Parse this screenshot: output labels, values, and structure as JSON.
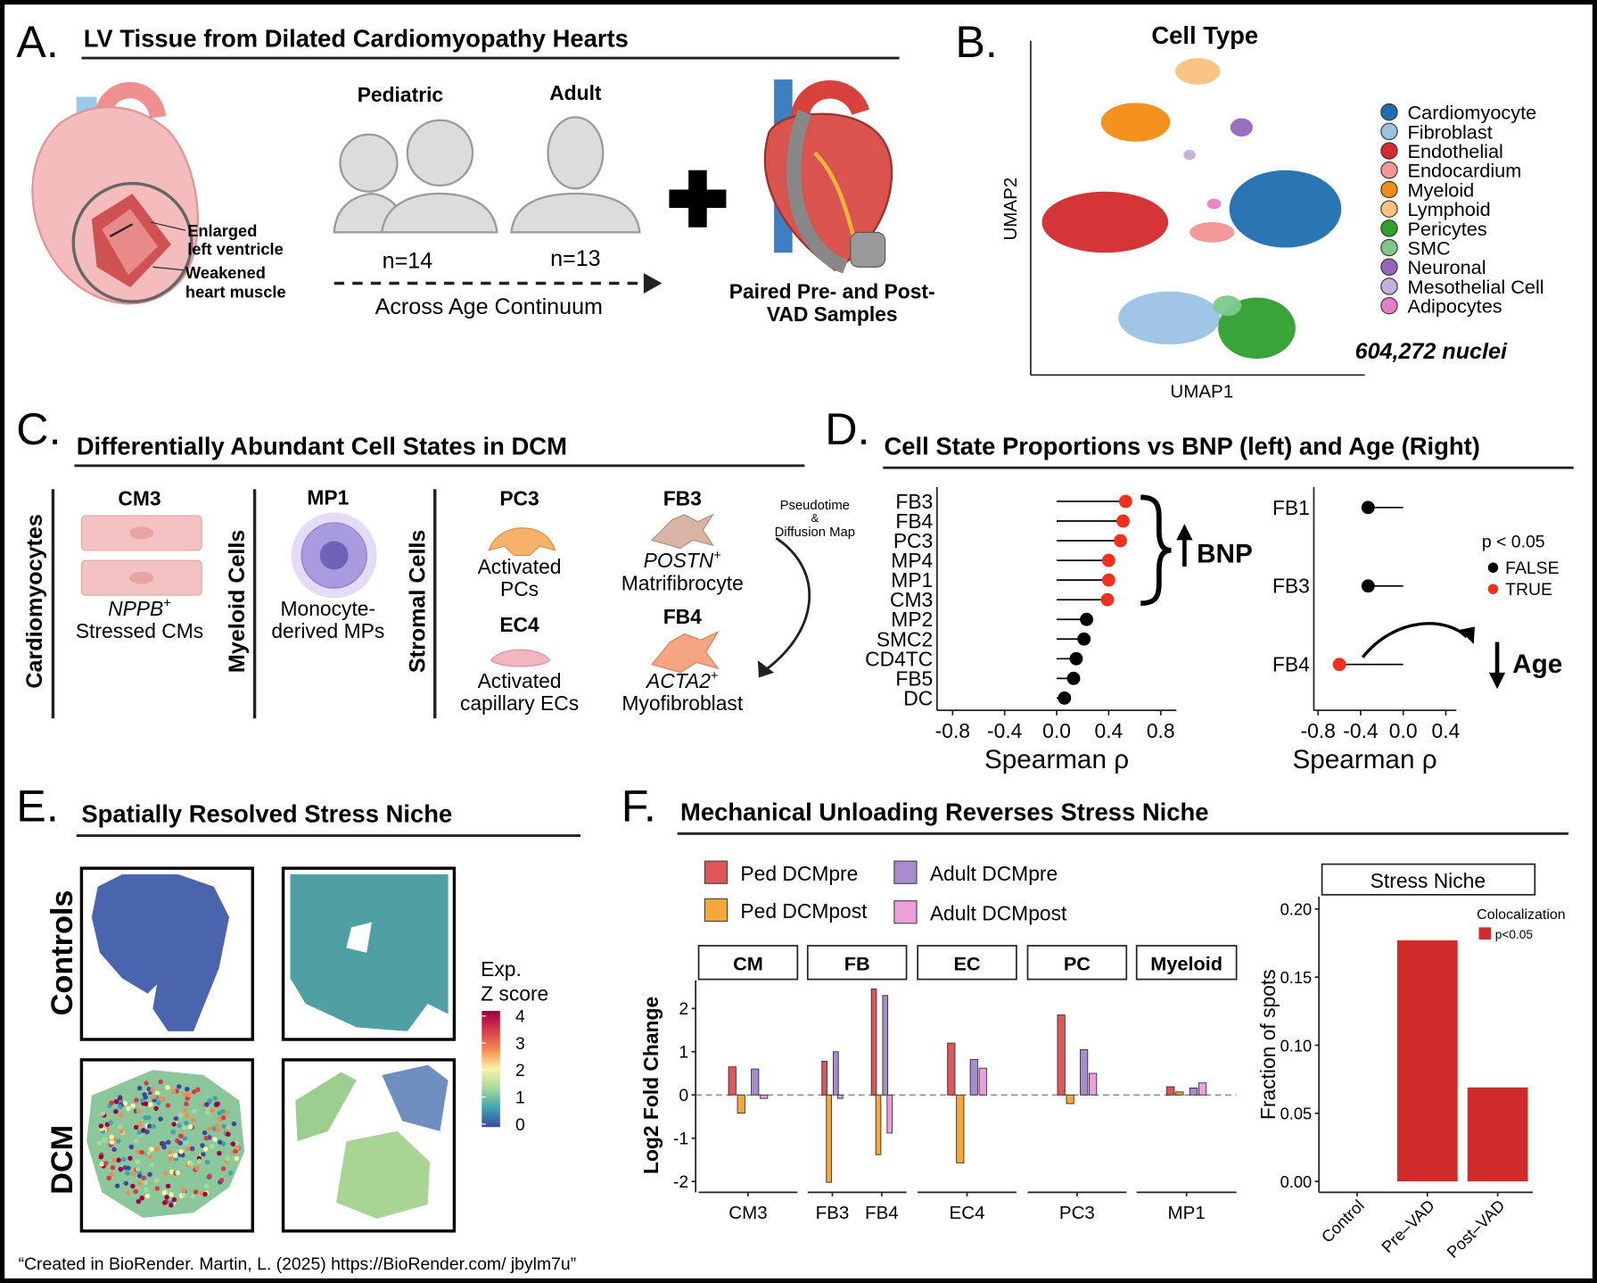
{
  "panel_a": {
    "label": "A.",
    "title": "LV Tissue from Dilated Cardiomyopathy Hearts",
    "heart_labels": [
      [
        "Enlarged",
        "left ventricle"
      ],
      [
        "Weakened",
        "heart muscle"
      ]
    ],
    "groups": [
      {
        "name": "Pediatric",
        "n": "n=14"
      },
      {
        "name": "Adult",
        "n": "n=13"
      }
    ],
    "arrow_label": "Across Age Continuum",
    "vad_label": [
      "Paired Pre- and Post-",
      "VAD Samples"
    ]
  },
  "panel_b": {
    "label": "B.",
    "title": "Cell Type",
    "xlabel": "UMAP1",
    "ylabel": "UMAP2",
    "legend": [
      {
        "name": "Cardiomyocyte",
        "color": "#1f6fae"
      },
      {
        "name": "Fibroblast",
        "color": "#9cc3e4"
      },
      {
        "name": "Endothelial",
        "color": "#d42a2c"
      },
      {
        "name": "Endocardium",
        "color": "#f29593"
      },
      {
        "name": "Myeloid",
        "color": "#f28c12"
      },
      {
        "name": "Lymphoid",
        "color": "#f9c27e"
      },
      {
        "name": "Pericytes",
        "color": "#2ea02e"
      },
      {
        "name": "SMC",
        "color": "#7cc98b"
      },
      {
        "name": "Neuronal",
        "color": "#9467bd"
      },
      {
        "name": "Mesothelial Cell",
        "color": "#c5b0d8"
      },
      {
        "name": "Adipocytes",
        "color": "#e57fc3"
      }
    ],
    "annotation": "604,272 nuclei"
  },
  "panel_c": {
    "label": "C.",
    "title": "Differentially Abundant Cell States in DCM",
    "groups": [
      "Cardiomyocytes",
      "Myeloid Cells",
      "Stromal Cells"
    ],
    "states": [
      {
        "name": "CM3",
        "gene": "NPPB",
        "sup": "+",
        "desc": [
          "Stressed CMs"
        ]
      },
      {
        "name": "MP1",
        "desc": [
          "Monocyte-",
          "derived MPs"
        ]
      },
      {
        "name": "PC3",
        "desc": [
          "Activated",
          "PCs"
        ]
      },
      {
        "name": "EC4",
        "desc": [
          "Activated",
          "capillary ECs"
        ]
      },
      {
        "name": "FB3",
        "gene": "POSTN",
        "sup": "+",
        "desc": [
          "Matrifibrocyte"
        ]
      },
      {
        "name": "FB4",
        "gene": "ACTA2",
        "sup": "+",
        "desc": [
          "Myofibroblast"
        ]
      }
    ],
    "arrow_label": [
      "Pseudotime",
      "&",
      "Diffusion Map"
    ]
  },
  "panel_d": {
    "label": "D.",
    "title": "Cell State Proportions vs BNP (left) and Age (Right)"
  },
  "panel_e": {
    "label": "E.",
    "title": "Spatially Resolved Stress Niche",
    "rows": [
      "Controls",
      "DCM"
    ],
    "colorbar": {
      "title": [
        "Exp.",
        "Z score"
      ],
      "lim": [
        -0.11,
        4.19
      ],
      "ticks": [
        0,
        1,
        2,
        3,
        4
      ],
      "colors": [
        "#3b4aa0",
        "#3fa3b0",
        "#a6da9c",
        "#fbf3a6",
        "#f68a4e",
        "#d63a4a",
        "#9e0142"
      ]
    }
  },
  "panel_f": {
    "label": "F.",
    "title": "Mechanical Unloading Reverses Stress Niche"
  },
  "chart_data": [
    {
      "type": "lollipop",
      "categories": [
        "FB3",
        "FB4",
        "PC3",
        "MP4",
        "MP1",
        "CM3",
        "MP2",
        "SMC2",
        "CD4TC",
        "FB5",
        "DC"
      ],
      "values": [
        0.53,
        0.51,
        0.49,
        0.4,
        0.4,
        0.39,
        0.23,
        0.21,
        0.15,
        0.13,
        0.06
      ],
      "significant": [
        true,
        true,
        true,
        true,
        true,
        true,
        false,
        false,
        false,
        false,
        false
      ],
      "xlim": [
        -0.92,
        0.92
      ],
      "xticks": [
        -0.8,
        -0.4,
        {
          "value": 0,
          "label": "0.0"
        },
        0.4,
        0.8
      ],
      "xlabel": "Spearman ρ",
      "annotation": "BNP"
    },
    {
      "type": "lollipop",
      "categories": [
        "FB1",
        "FB3",
        "FB4"
      ],
      "values": [
        -0.33,
        -0.33,
        -0.6
      ],
      "significant": [
        false,
        false,
        true
      ],
      "xlim": [
        -0.84,
        0.5
      ],
      "xticks": [
        -0.8,
        -0.4,
        {
          "value": 0,
          "label": "0.0"
        },
        0.4
      ],
      "xlabel": "Spearman ρ",
      "annotation": "Age",
      "legend": {
        "title": "p < 0.05",
        "entries": [
          {
            "name": "FALSE",
            "color": "#000000"
          },
          {
            "name": "TRUE",
            "color": "#f2301b"
          }
        ]
      }
    },
    {
      "type": "bar",
      "ylabel": "Log2 Fold Change",
      "facets": [
        {
          "label": "CM",
          "categories": [
            "CM3"
          ]
        },
        {
          "label": "FB",
          "categories": [
            "FB3",
            "FB4"
          ]
        },
        {
          "label": "EC",
          "categories": [
            "EC4"
          ]
        },
        {
          "label": "PC",
          "categories": [
            "PC3"
          ]
        },
        {
          "label": "Myeloid",
          "categories": [
            "MP1"
          ]
        }
      ],
      "series": [
        {
          "name": "Ped DCMpre",
          "color": "#e05558",
          "values": [
            0.65,
            0.78,
            2.45,
            1.2,
            1.85,
            0.19
          ]
        },
        {
          "name": "Ped DCMpost",
          "color": "#f5a838",
          "values": [
            -0.42,
            -2.02,
            -1.38,
            -1.57,
            -0.2,
            0.07
          ]
        },
        {
          "name": "Adult DCMpre",
          "color": "#a98ccd",
          "values": [
            0.6,
            1.0,
            2.3,
            0.82,
            1.05,
            0.16
          ]
        },
        {
          "name": "Adult DCMpost",
          "color": "#ec9fd8",
          "values": [
            -0.08,
            -0.08,
            -0.88,
            0.62,
            0.5,
            0.28
          ]
        }
      ],
      "ylim": [
        -2.25,
        2.65
      ],
      "yticks": [
        -2,
        -1,
        0,
        1,
        2
      ]
    },
    {
      "type": "bar",
      "title": "Stress Niche",
      "categories": [
        "Control",
        "Pre–VAD",
        "Post–VAD"
      ],
      "values": [
        0,
        0.177,
        0.069
      ],
      "color": "#d02a2a",
      "ylabel": "Fraction of spots",
      "ylim": [
        -0.008,
        0.209
      ],
      "yticks": [
        {
          "value": 0,
          "label": "0.00"
        },
        {
          "value": 0.05,
          "label": "0.05"
        },
        {
          "value": 0.1,
          "label": "0.10"
        },
        {
          "value": 0.15,
          "label": "0.15"
        },
        {
          "value": 0.2,
          "label": "0.20"
        }
      ],
      "legend_title": "Colocalization",
      "legend_label": "p<0.05"
    }
  ],
  "footer": "“Created in BioRender. Martin, L. (2025) https://BioRender.com/  jbylm7u”"
}
